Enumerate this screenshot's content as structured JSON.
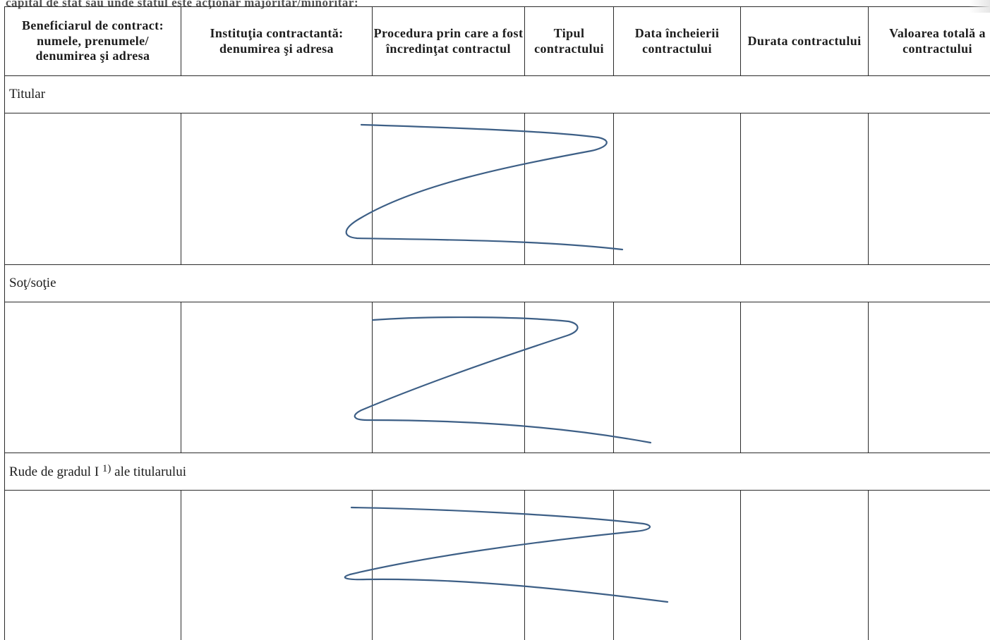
{
  "document": {
    "top_cut_text": "capital de stat sau unde statul este acţionar majoritar/minoritar:",
    "table": {
      "headers": [
        "Beneficiarul de contract: numele, prenumele/ denumirea şi adresa",
        "Instituţia contractantă: denumirea şi adresa",
        "Procedura prin care a fost încredinţat contractul",
        "Tipul contractului",
        "Data încheierii contractului",
        "Durata contractului",
        "Valoarea totală a contractului"
      ],
      "sections": [
        {
          "label": "Titular",
          "footnote": ""
        },
        {
          "label": "Soţ/soţie",
          "footnote": ""
        },
        {
          "label": "Rude de gradul I",
          "footnote": "1)",
          "suffix": " ale titularului"
        }
      ]
    },
    "signature_color": "#3d5f86"
  }
}
